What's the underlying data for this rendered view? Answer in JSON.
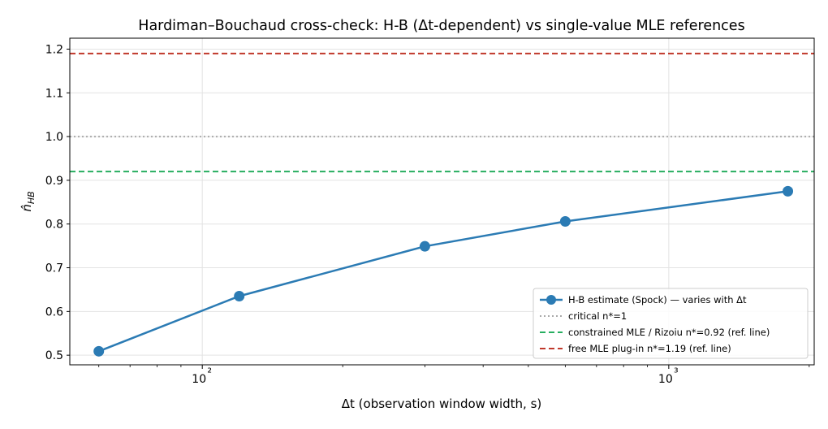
{
  "chart_data": {
    "type": "line",
    "title": "Hardiman–Bouchaud cross-check: H-B (Δt-dependent) vs single-value MLE references",
    "xlabel": "Δt (observation window width, s)",
    "ylabel": "n̂_HB",
    "xscale": "log",
    "xlim": [
      52,
      2050
    ],
    "ylim": [
      0.478,
      1.225
    ],
    "grid": true,
    "legend_position": "lower-right",
    "x_ticks": [
      {
        "value": 100,
        "label": "10²"
      },
      {
        "value": 1000,
        "label": "10³"
      }
    ],
    "y_ticks": [
      {
        "value": 0.5,
        "label": "0.5"
      },
      {
        "value": 0.6,
        "label": "0.6"
      },
      {
        "value": 0.7,
        "label": "0.7"
      },
      {
        "value": 0.8,
        "label": "0.8"
      },
      {
        "value": 0.9,
        "label": "0.9"
      },
      {
        "value": 1.0,
        "label": "1.0"
      },
      {
        "value": 1.1,
        "label": "1.1"
      },
      {
        "value": 1.2,
        "label": "1.2"
      }
    ],
    "series": [
      {
        "name": "H-B estimate (Spock) — varies with Δt",
        "color": "#2b7bb4",
        "x": [
          60,
          120,
          300,
          600,
          1800
        ],
        "y": [
          0.509,
          0.635,
          0.749,
          0.806,
          0.875
        ]
      }
    ],
    "reference_lines": [
      {
        "name": "critical n*=1",
        "y": 1.0,
        "color": "#aaaaaa",
        "style": "dotted"
      },
      {
        "name": "constrained MLE / Rizoiu n*=0.92 (ref. line)",
        "y": 0.92,
        "color": "#27ae60",
        "style": "dashed"
      },
      {
        "name": "free MLE plug-in n*=1.19 (ref. line)",
        "y": 1.19,
        "color": "#c0392b",
        "style": "dashed"
      }
    ]
  }
}
